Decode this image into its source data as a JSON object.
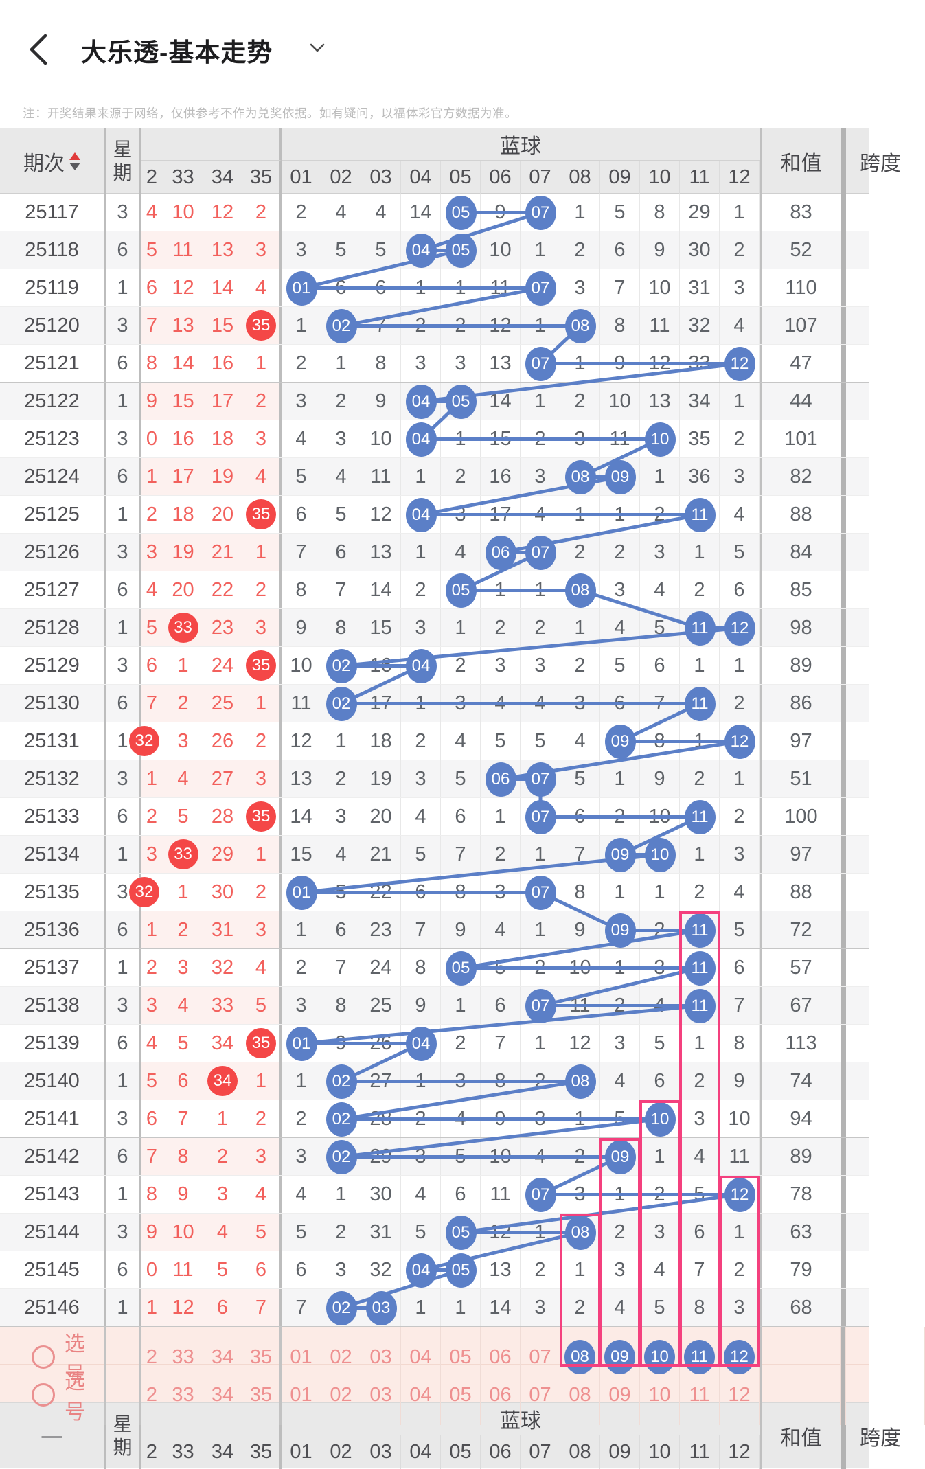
{
  "topbar": {
    "title": "大乐透-基本走势",
    "back_icon": "chevron-left",
    "dropdown_icon": "chevron-down"
  },
  "note": "注：开奖结果来源于网络，仅供参考不作为兑奖依据。如有疑问，以福体彩官方数据为准。",
  "header": {
    "period": "期次",
    "week_top": "星",
    "week_bottom": "期",
    "blue_group": "蓝球",
    "sum": "和值",
    "span": "跨度",
    "footer_period": "—",
    "red_cols": [
      "2",
      "33",
      "34",
      "35"
    ],
    "blue_cols": [
      "01",
      "02",
      "03",
      "04",
      "05",
      "06",
      "07",
      "08",
      "09",
      "10",
      "11",
      "12"
    ]
  },
  "colors": {
    "blue": "#5b7fc7",
    "red_circle": "#f44747",
    "red_text": "#f2605c",
    "pink_box": "#f4407e",
    "select_text": "#ee9090",
    "select_bg": "#fcebe6",
    "zebra": "#f5f5f6",
    "zebra_red": "#fdf1ef",
    "header_bg": "#e9e9e9"
  },
  "rows": [
    {
      "p": "25117",
      "w": "3",
      "r": [
        "4",
        "10",
        "12",
        "2"
      ],
      "rh": [],
      "b": [
        "2",
        "4",
        "4",
        "14",
        "05",
        "9",
        "07",
        "1",
        "5",
        "8",
        "29",
        "1"
      ],
      "bh": [
        4,
        6
      ],
      "s": "83"
    },
    {
      "p": "25118",
      "w": "6",
      "r": [
        "5",
        "11",
        "13",
        "3"
      ],
      "rh": [],
      "b": [
        "3",
        "5",
        "5",
        "04",
        "05",
        "10",
        "1",
        "2",
        "6",
        "9",
        "30",
        "2"
      ],
      "bh": [
        3,
        4
      ],
      "s": "52"
    },
    {
      "p": "25119",
      "w": "1",
      "r": [
        "6",
        "12",
        "14",
        "4"
      ],
      "rh": [],
      "b": [
        "01",
        "6",
        "6",
        "1",
        "1",
        "11",
        "07",
        "3",
        "7",
        "10",
        "31",
        "3"
      ],
      "bh": [
        0,
        6
      ],
      "s": "110"
    },
    {
      "p": "25120",
      "w": "3",
      "r": [
        "7",
        "13",
        "15",
        "35"
      ],
      "rh": [
        3
      ],
      "b": [
        "1",
        "02",
        "7",
        "2",
        "2",
        "12",
        "1",
        "08",
        "8",
        "11",
        "32",
        "4"
      ],
      "bh": [
        1,
        7
      ],
      "s": "107"
    },
    {
      "p": "25121",
      "w": "6",
      "r": [
        "8",
        "14",
        "16",
        "1"
      ],
      "rh": [],
      "b": [
        "2",
        "1",
        "8",
        "3",
        "3",
        "13",
        "07",
        "1",
        "9",
        "12",
        "33",
        "12"
      ],
      "bh": [
        6,
        11
      ],
      "s": "47"
    },
    {
      "p": "25122",
      "w": "1",
      "r": [
        "9",
        "15",
        "17",
        "2"
      ],
      "rh": [],
      "b": [
        "3",
        "2",
        "9",
        "04",
        "05",
        "14",
        "1",
        "2",
        "10",
        "13",
        "34",
        "1"
      ],
      "bh": [
        3,
        4
      ],
      "s": "44"
    },
    {
      "p": "25123",
      "w": "3",
      "r": [
        "0",
        "16",
        "18",
        "3"
      ],
      "rh": [],
      "b": [
        "4",
        "3",
        "10",
        "04",
        "1",
        "15",
        "2",
        "3",
        "11",
        "10",
        "35",
        "2"
      ],
      "bh": [
        3,
        9
      ],
      "s": "101"
    },
    {
      "p": "25124",
      "w": "6",
      "r": [
        "1",
        "17",
        "19",
        "4"
      ],
      "rh": [],
      "b": [
        "5",
        "4",
        "11",
        "1",
        "2",
        "16",
        "3",
        "08",
        "09",
        "1",
        "36",
        "3"
      ],
      "bh": [
        7,
        8
      ],
      "s": "82"
    },
    {
      "p": "25125",
      "w": "1",
      "r": [
        "2",
        "18",
        "20",
        "35"
      ],
      "rh": [
        3
      ],
      "b": [
        "6",
        "5",
        "12",
        "04",
        "3",
        "17",
        "4",
        "1",
        "1",
        "2",
        "11",
        "4"
      ],
      "bh": [
        3,
        10
      ],
      "s": "88"
    },
    {
      "p": "25126",
      "w": "3",
      "r": [
        "3",
        "19",
        "21",
        "1"
      ],
      "rh": [],
      "b": [
        "7",
        "6",
        "13",
        "1",
        "4",
        "06",
        "07",
        "2",
        "2",
        "3",
        "1",
        "5"
      ],
      "bh": [
        5,
        6
      ],
      "s": "84"
    },
    {
      "p": "25127",
      "w": "6",
      "r": [
        "4",
        "20",
        "22",
        "2"
      ],
      "rh": [],
      "b": [
        "8",
        "7",
        "14",
        "2",
        "05",
        "1",
        "1",
        "08",
        "3",
        "4",
        "2",
        "6"
      ],
      "bh": [
        4,
        7
      ],
      "s": "85"
    },
    {
      "p": "25128",
      "w": "1",
      "r": [
        "5",
        "33",
        "23",
        "3"
      ],
      "rh": [
        1
      ],
      "b": [
        "9",
        "8",
        "15",
        "3",
        "1",
        "2",
        "2",
        "1",
        "4",
        "5",
        "11",
        "12"
      ],
      "bh": [
        10,
        11
      ],
      "s": "98"
    },
    {
      "p": "25129",
      "w": "3",
      "r": [
        "6",
        "1",
        "24",
        "35"
      ],
      "rh": [
        3
      ],
      "b": [
        "10",
        "02",
        "16",
        "04",
        "2",
        "3",
        "3",
        "2",
        "5",
        "6",
        "1",
        "1"
      ],
      "bh": [
        1,
        3
      ],
      "s": "89"
    },
    {
      "p": "25130",
      "w": "6",
      "r": [
        "7",
        "2",
        "25",
        "1"
      ],
      "rh": [],
      "b": [
        "11",
        "02",
        "17",
        "1",
        "3",
        "4",
        "4",
        "3",
        "6",
        "7",
        "11",
        "2"
      ],
      "bh": [
        1,
        10
      ],
      "s": "86"
    },
    {
      "p": "25131",
      "w": "1",
      "r": [
        "32",
        "3",
        "26",
        "2"
      ],
      "rh": [
        0
      ],
      "b": [
        "12",
        "1",
        "18",
        "2",
        "4",
        "5",
        "5",
        "4",
        "09",
        "8",
        "1",
        "12"
      ],
      "bh": [
        8,
        11
      ],
      "s": "97"
    },
    {
      "p": "25132",
      "w": "3",
      "r": [
        "1",
        "4",
        "27",
        "3"
      ],
      "rh": [],
      "b": [
        "13",
        "2",
        "19",
        "3",
        "5",
        "06",
        "07",
        "5",
        "1",
        "9",
        "2",
        "1"
      ],
      "bh": [
        5,
        6
      ],
      "s": "51"
    },
    {
      "p": "25133",
      "w": "6",
      "r": [
        "2",
        "5",
        "28",
        "35"
      ],
      "rh": [
        3
      ],
      "b": [
        "14",
        "3",
        "20",
        "4",
        "6",
        "1",
        "07",
        "6",
        "2",
        "10",
        "11",
        "2"
      ],
      "bh": [
        6,
        10
      ],
      "s": "100"
    },
    {
      "p": "25134",
      "w": "1",
      "r": [
        "3",
        "33",
        "29",
        "1"
      ],
      "rh": [
        1
      ],
      "b": [
        "15",
        "4",
        "21",
        "5",
        "7",
        "2",
        "1",
        "7",
        "09",
        "10",
        "1",
        "3"
      ],
      "bh": [
        8,
        9
      ],
      "s": "97"
    },
    {
      "p": "25135",
      "w": "3",
      "r": [
        "32",
        "1",
        "30",
        "2"
      ],
      "rh": [
        0
      ],
      "b": [
        "01",
        "5",
        "22",
        "6",
        "8",
        "3",
        "07",
        "8",
        "1",
        "1",
        "2",
        "4"
      ],
      "bh": [
        0,
        6
      ],
      "s": "88"
    },
    {
      "p": "25136",
      "w": "6",
      "r": [
        "1",
        "2",
        "31",
        "3"
      ],
      "rh": [],
      "b": [
        "1",
        "6",
        "23",
        "7",
        "9",
        "4",
        "1",
        "9",
        "09",
        "2",
        "11",
        "5"
      ],
      "bh": [
        8,
        10
      ],
      "s": "72"
    },
    {
      "p": "25137",
      "w": "1",
      "r": [
        "2",
        "3",
        "32",
        "4"
      ],
      "rh": [],
      "b": [
        "2",
        "7",
        "24",
        "8",
        "05",
        "5",
        "2",
        "10",
        "1",
        "3",
        "11",
        "6"
      ],
      "bh": [
        4,
        10
      ],
      "s": "57"
    },
    {
      "p": "25138",
      "w": "3",
      "r": [
        "3",
        "4",
        "33",
        "5"
      ],
      "rh": [],
      "b": [
        "3",
        "8",
        "25",
        "9",
        "1",
        "6",
        "07",
        "11",
        "2",
        "4",
        "11",
        "7"
      ],
      "bh": [
        6,
        10
      ],
      "s": "67"
    },
    {
      "p": "25139",
      "w": "6",
      "r": [
        "4",
        "5",
        "34",
        "35"
      ],
      "rh": [
        3
      ],
      "b": [
        "01",
        "9",
        "26",
        "04",
        "2",
        "7",
        "1",
        "12",
        "3",
        "5",
        "1",
        "8"
      ],
      "bh": [
        0,
        3
      ],
      "s": "113"
    },
    {
      "p": "25140",
      "w": "1",
      "r": [
        "5",
        "6",
        "34",
        "1"
      ],
      "rh": [
        2
      ],
      "b": [
        "1",
        "02",
        "27",
        "1",
        "3",
        "8",
        "2",
        "08",
        "4",
        "6",
        "2",
        "9"
      ],
      "bh": [
        1,
        7
      ],
      "s": "74"
    },
    {
      "p": "25141",
      "w": "3",
      "r": [
        "6",
        "7",
        "1",
        "2"
      ],
      "rh": [],
      "b": [
        "2",
        "02",
        "28",
        "2",
        "4",
        "9",
        "3",
        "1",
        "5",
        "10",
        "3",
        "10"
      ],
      "bh": [
        1,
        9
      ],
      "s": "94"
    },
    {
      "p": "25142",
      "w": "6",
      "r": [
        "7",
        "8",
        "2",
        "3"
      ],
      "rh": [],
      "b": [
        "3",
        "02",
        "29",
        "3",
        "5",
        "10",
        "4",
        "2",
        "09",
        "1",
        "4",
        "11"
      ],
      "bh": [
        1,
        8
      ],
      "s": "89"
    },
    {
      "p": "25143",
      "w": "1",
      "r": [
        "8",
        "9",
        "3",
        "4"
      ],
      "rh": [],
      "b": [
        "4",
        "1",
        "30",
        "4",
        "6",
        "11",
        "07",
        "3",
        "1",
        "2",
        "5",
        "12"
      ],
      "bh": [
        6,
        11
      ],
      "s": "78"
    },
    {
      "p": "25144",
      "w": "3",
      "r": [
        "9",
        "10",
        "4",
        "5"
      ],
      "rh": [],
      "b": [
        "5",
        "2",
        "31",
        "5",
        "05",
        "12",
        "1",
        "08",
        "2",
        "3",
        "6",
        "1"
      ],
      "bh": [
        4,
        7
      ],
      "s": "63"
    },
    {
      "p": "25145",
      "w": "6",
      "r": [
        "0",
        "11",
        "5",
        "6"
      ],
      "rh": [],
      "b": [
        "6",
        "3",
        "32",
        "04",
        "05",
        "13",
        "2",
        "1",
        "3",
        "4",
        "7",
        "2"
      ],
      "bh": [
        3,
        4
      ],
      "s": "79"
    },
    {
      "p": "25146",
      "w": "1",
      "r": [
        "1",
        "12",
        "6",
        "7"
      ],
      "rh": [],
      "b": [
        "7",
        "02",
        "03",
        "1",
        "1",
        "14",
        "3",
        "2",
        "4",
        "5",
        "8",
        "3"
      ],
      "bh": [
        1,
        2
      ],
      "s": "68"
    }
  ],
  "select_rows": [
    {
      "label": "选号",
      "red": [
        "2",
        "33",
        "34",
        "35"
      ],
      "blue": [
        "01",
        "02",
        "03",
        "04",
        "05",
        "06",
        "07",
        "08",
        "09",
        "10",
        "11",
        "12"
      ],
      "selected": [
        "08",
        "09",
        "10",
        "11",
        "12"
      ]
    },
    {
      "label": "选号",
      "red": [
        "2",
        "33",
        "34",
        "35"
      ],
      "blue": [
        "01",
        "02",
        "03",
        "04",
        "05",
        "06",
        "07",
        "08",
        "09",
        "10",
        "11",
        "12"
      ],
      "selected": []
    }
  ],
  "highlight_boxes": [
    {
      "ball": 11,
      "start_period": "25136"
    },
    {
      "ball": 10,
      "start_period": "25141"
    },
    {
      "ball": 9,
      "start_period": "25142"
    },
    {
      "ball": 12,
      "start_period": "25143"
    },
    {
      "ball": 8,
      "start_period": "25144"
    }
  ]
}
